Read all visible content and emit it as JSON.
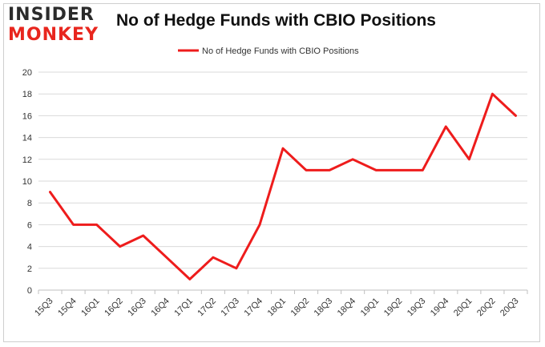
{
  "logo": {
    "line1": "INSIDER",
    "line2": "MONKEY"
  },
  "chart_data": {
    "type": "line",
    "title": "No of Hedge Funds with CBIO Positions",
    "xlabel": "",
    "ylabel": "",
    "ylim": [
      0,
      20
    ],
    "yticks": [
      0,
      2,
      4,
      6,
      8,
      10,
      12,
      14,
      16,
      18,
      20
    ],
    "categories": [
      "15Q3",
      "15Q4",
      "16Q1",
      "16Q2",
      "16Q3",
      "16Q4",
      "17Q1",
      "17Q2",
      "17Q3",
      "17Q4",
      "18Q1",
      "18Q2",
      "18Q3",
      "18Q4",
      "19Q1",
      "19Q2",
      "19Q3",
      "19Q4",
      "20Q1",
      "20Q2",
      "20Q3"
    ],
    "series": [
      {
        "name": "No of Hedge Funds with CBIO Positions",
        "color": "#ee1c1c",
        "values": [
          9,
          6,
          6,
          4,
          5,
          3,
          1,
          3,
          2,
          6,
          13,
          11,
          11,
          12,
          11,
          11,
          11,
          15,
          12,
          18,
          16
        ]
      }
    ],
    "legend_position": "top-center",
    "grid": true
  }
}
